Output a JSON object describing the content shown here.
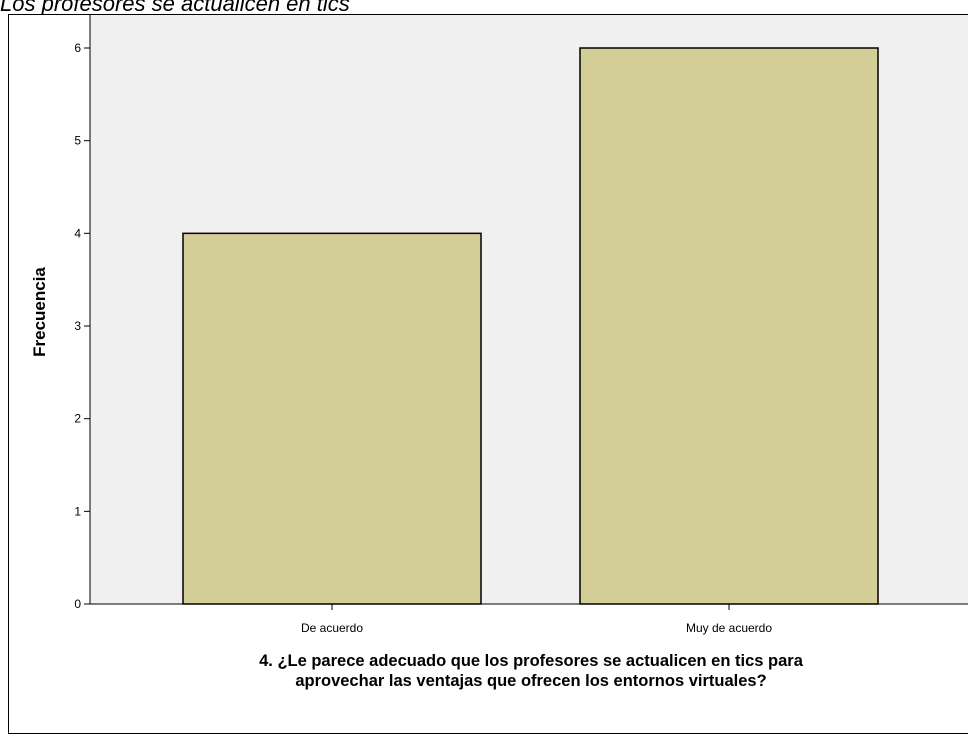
{
  "caption": "Los profesores se actualicen en tics",
  "colors": {
    "plot_background": "#f0f0f0",
    "bar_fill": "#d3ce97",
    "bar_stroke": "#000000"
  },
  "chart_data": {
    "type": "bar",
    "categories": [
      "De acuerdo",
      "Muy de acuerdo"
    ],
    "values": [
      4,
      6
    ],
    "ylabel": "Frecuencia",
    "xlabel_lines": [
      "4. ¿Le parece adecuado que los profesores se actualicen en tics para",
      "aprovechar las ventajas que ofrecen los entornos virtuales?"
    ],
    "ylim": [
      0,
      6
    ],
    "yticks": [
      0,
      1,
      2,
      3,
      4,
      5,
      6
    ],
    "grid": false,
    "legend": "none"
  }
}
